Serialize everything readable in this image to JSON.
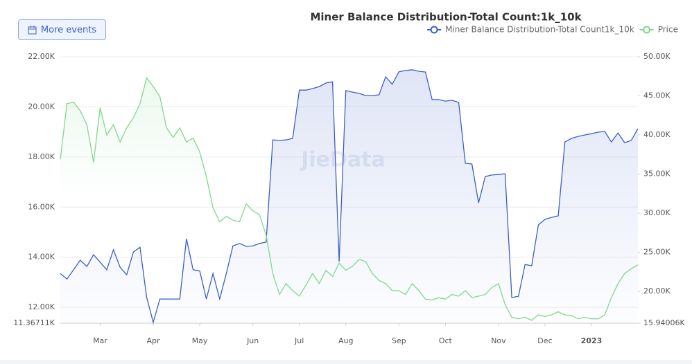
{
  "toolbar": {
    "button": "More events"
  },
  "chart_data": {
    "type": "line",
    "title": "Miner Balance Distribution-Total Count:1k_10k",
    "watermark": "JieData",
    "legend": "top-right",
    "grid": true,
    "categories": [
      null,
      null,
      null,
      null,
      null,
      null,
      "Mar",
      null,
      null,
      null,
      null,
      null,
      null,
      null,
      "Apr",
      null,
      null,
      null,
      null,
      null,
      null,
      "May",
      null,
      null,
      null,
      null,
      null,
      null,
      null,
      "Jun",
      null,
      null,
      null,
      null,
      null,
      null,
      "Jul",
      null,
      null,
      null,
      null,
      null,
      null,
      "Aug",
      null,
      null,
      null,
      null,
      null,
      null,
      null,
      "Sep",
      null,
      null,
      null,
      null,
      null,
      null,
      "Oct",
      null,
      null,
      null,
      null,
      null,
      null,
      null,
      "Nov",
      null,
      null,
      null,
      null,
      null,
      null,
      "Dec",
      null,
      null,
      null,
      null,
      null,
      null,
      "2023",
      null,
      null,
      null,
      null,
      null,
      null,
      null
    ],
    "series": [
      {
        "name": "Miner Balance Distribution-Total Count1k_10k",
        "color": "#3a5fc8",
        "values": [
          13350,
          13130,
          13500,
          13880,
          13630,
          14100,
          13800,
          13500,
          14300,
          13600,
          13300,
          14200,
          14400,
          12400,
          11400,
          12330,
          12330,
          12330,
          12330,
          14740,
          13500,
          13450,
          12330,
          13350,
          12330,
          13350,
          14450,
          14550,
          14430,
          14450,
          14550,
          14600,
          18680,
          18660,
          18680,
          18740,
          20670,
          20670,
          20730,
          20810,
          20950,
          21000,
          13820,
          20650,
          20590,
          20540,
          20450,
          20450,
          20480,
          21200,
          20900,
          21400,
          21450,
          21480,
          21420,
          21390,
          20290,
          20290,
          20230,
          20260,
          20180,
          17750,
          17720,
          16170,
          17220,
          17280,
          17300,
          17330,
          12390,
          12440,
          13710,
          13660,
          15290,
          15510,
          15590,
          15650,
          18600,
          18740,
          18820,
          18880,
          18930,
          18990,
          19020,
          18600,
          18960,
          18570,
          18660,
          19130
        ]
      },
      {
        "name": "Price",
        "color": "#7fd98b",
        "axis": "y2",
        "values": [
          36900,
          44000,
          44200,
          43100,
          41300,
          36500,
          43500,
          40000,
          41300,
          39100,
          40900,
          42200,
          44000,
          47300,
          46200,
          44900,
          40900,
          39700,
          40900,
          39100,
          39600,
          37800,
          34700,
          30700,
          28900,
          29600,
          29100,
          28900,
          31200,
          30300,
          29800,
          27200,
          22300,
          19600,
          21000,
          20100,
          19400,
          20800,
          22300,
          21000,
          22700,
          21900,
          23600,
          22700,
          23200,
          24100,
          23800,
          22300,
          21400,
          21000,
          20100,
          20100,
          19600,
          21000,
          20100,
          19000,
          18900,
          19200,
          19000,
          19600,
          19400,
          20100,
          19200,
          19400,
          19600,
          20500,
          21000,
          18300,
          16700,
          16500,
          16700,
          16300,
          17000,
          16800,
          17000,
          17400,
          17000,
          16900,
          16500,
          16700,
          16500,
          16500,
          17000,
          19200,
          21000,
          22300,
          22900,
          23400
        ]
      }
    ],
    "ylim": [
      11367.11,
      22000
    ],
    "yticks": [
      {
        "value": 11367.11,
        "label": "11.36711K"
      },
      {
        "value": 12000,
        "label": "12.00K"
      },
      {
        "value": 14000,
        "label": "14.00K"
      },
      {
        "value": 16000,
        "label": "16.00K"
      },
      {
        "value": 18000,
        "label": "18.00K"
      },
      {
        "value": 20000,
        "label": "20.00K"
      },
      {
        "value": 22000,
        "label": "22.00K"
      }
    ],
    "y2lim": [
      15940.06,
      50000
    ],
    "y2ticks": [
      {
        "value": 15940.06,
        "label": "15.94006K"
      },
      {
        "value": 20000,
        "label": "20.00K"
      },
      {
        "value": 25000,
        "label": "25.00K"
      },
      {
        "value": 30000,
        "label": "30.00K"
      },
      {
        "value": 35000,
        "label": "35.00K"
      },
      {
        "value": 40000,
        "label": "40.00K"
      },
      {
        "value": 45000,
        "label": "45.00K"
      },
      {
        "value": 50000,
        "label": "50.00K"
      }
    ]
  }
}
